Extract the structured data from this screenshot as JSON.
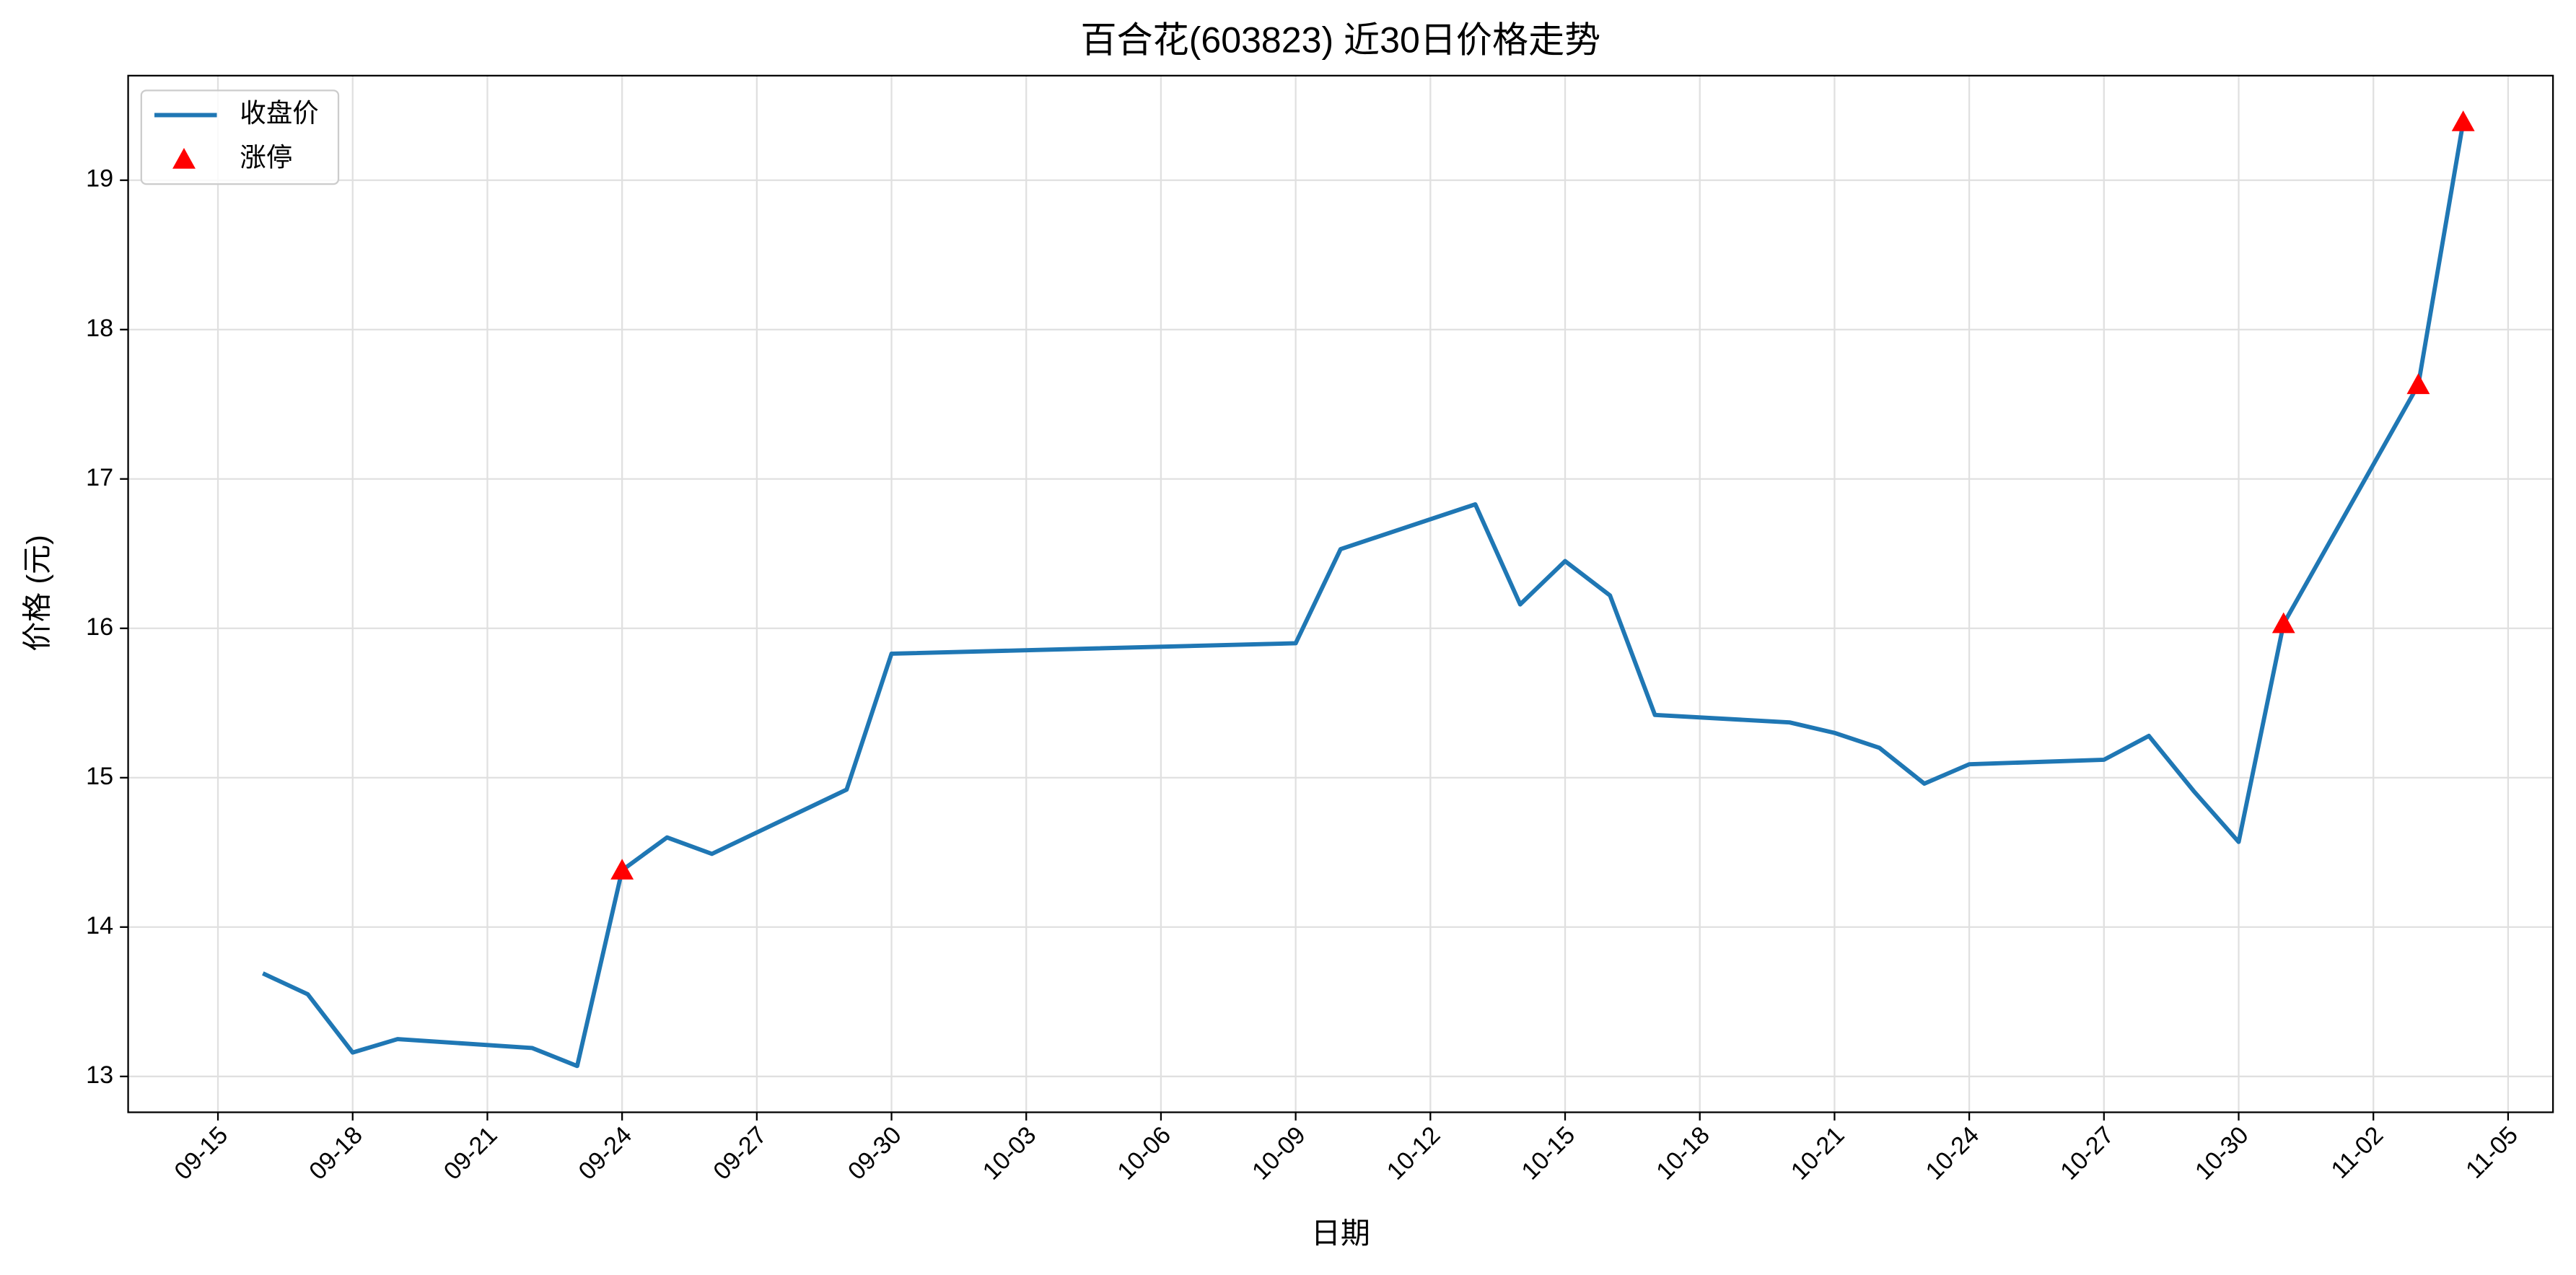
{
  "chart_data": {
    "type": "line",
    "title": "百合花(603823) 近30日价格走势",
    "x_label": "日期",
    "y_label": "价格 (元)",
    "series": [
      {
        "name": "收盘价",
        "type": "line",
        "color": "#1f77b4",
        "x": [
          "09-16",
          "09-17",
          "09-18",
          "09-19",
          "09-22",
          "09-23",
          "09-24",
          "09-25",
          "09-26",
          "09-29",
          "09-30",
          "10-09",
          "10-10",
          "10-13",
          "10-14",
          "10-15",
          "10-16",
          "10-17",
          "10-20",
          "10-21",
          "10-22",
          "10-23",
          "10-24",
          "10-27",
          "10-28",
          "10-29",
          "10-30",
          "10-31",
          "11-03",
          "11-04"
        ],
        "values": [
          13.69,
          13.55,
          13.16,
          13.25,
          13.19,
          13.07,
          14.38,
          14.6,
          14.49,
          14.92,
          15.83,
          15.9,
          16.53,
          16.83,
          16.16,
          16.45,
          16.22,
          15.42,
          15.37,
          15.3,
          15.2,
          14.96,
          15.09,
          15.12,
          15.28,
          14.91,
          14.57,
          16.03,
          17.63,
          19.39
        ]
      },
      {
        "name": "涨停",
        "type": "scatter",
        "color": "#ff0000",
        "marker": "triangle",
        "x": [
          "09-24",
          "10-31",
          "11-03",
          "11-04"
        ],
        "values": [
          14.38,
          16.03,
          17.63,
          19.39
        ]
      }
    ],
    "xlim": [
      "09-13",
      "11-06"
    ],
    "xticks": [
      "09-15",
      "09-18",
      "09-21",
      "09-24",
      "09-27",
      "09-30",
      "10-03",
      "10-06",
      "10-09",
      "10-12",
      "10-15",
      "10-18",
      "10-21",
      "10-24",
      "10-27",
      "10-30",
      "11-02",
      "11-05"
    ],
    "ylim": [
      12.76,
      19.7
    ],
    "yticks": [
      13,
      14,
      15,
      16,
      17,
      18,
      19
    ],
    "grid": true,
    "legend": "upper-left"
  }
}
